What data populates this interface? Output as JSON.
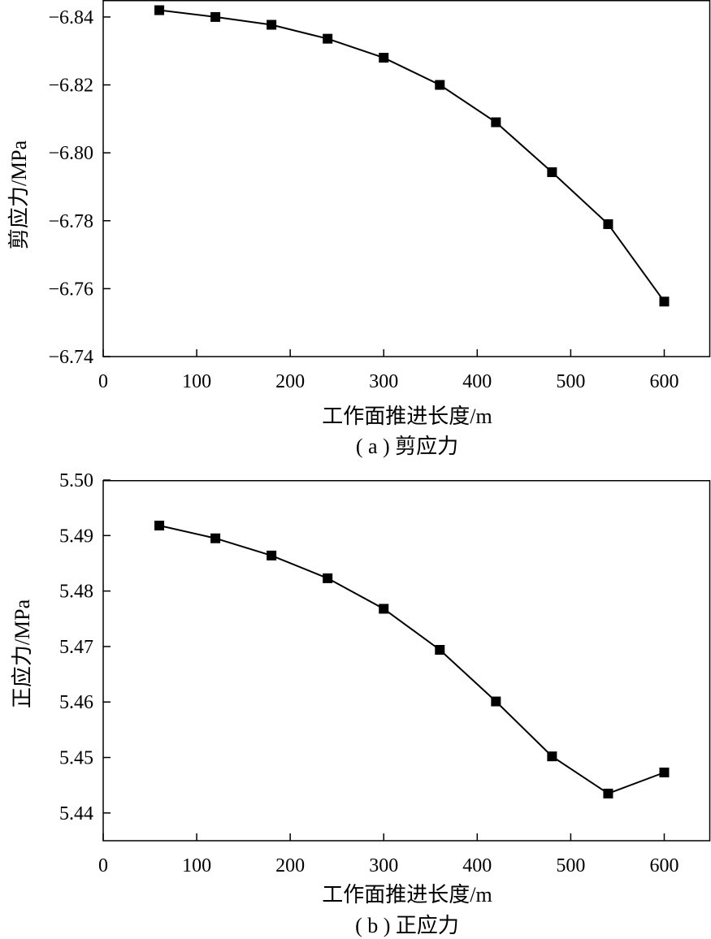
{
  "chart_data": [
    {
      "type": "line",
      "caption": "( a ) 剪应力",
      "xlabel": "工作面推进长度/m",
      "ylabel": "剪应力/MPa",
      "xlim": [
        0,
        650
      ],
      "ylim": [
        -6.74,
        -6.845
      ],
      "y_inverted": true,
      "xticks": [
        0,
        100,
        200,
        300,
        400,
        500,
        600
      ],
      "yticks": [
        -6.84,
        -6.82,
        -6.8,
        -6.78,
        -6.76,
        -6.74
      ],
      "ytick_labels": [
        "−6.84",
        "−6.82",
        "−6.80",
        "−6.78",
        "−6.76",
        "−6.74"
      ],
      "marker": "square",
      "series": [
        {
          "x": [
            60,
            120,
            180,
            240,
            300,
            360,
            420,
            480,
            540,
            600
          ],
          "y": [
            -6.842,
            -6.84,
            -6.8377,
            -6.8336,
            -6.828,
            -6.82,
            -6.809,
            -6.7943,
            -6.779,
            -6.7562
          ]
        }
      ]
    },
    {
      "type": "line",
      "caption": "( b ) 正应力",
      "xlabel": "工作面推进长度/m",
      "ylabel": "正应力/MPa",
      "xlim": [
        0,
        650
      ],
      "ylim": [
        5.435,
        5.5
      ],
      "xticks": [
        0,
        100,
        200,
        300,
        400,
        500,
        600
      ],
      "yticks": [
        5.44,
        5.45,
        5.46,
        5.47,
        5.48,
        5.49,
        5.5
      ],
      "ytick_labels": [
        "5.44",
        "5.45",
        "5.46",
        "5.47",
        "5.48",
        "5.49",
        "5.50"
      ],
      "marker": "square",
      "series": [
        {
          "x": [
            60,
            120,
            180,
            240,
            300,
            360,
            420,
            480,
            540,
            600
          ],
          "y": [
            5.4918,
            5.4895,
            5.4864,
            5.4823,
            5.4768,
            5.4694,
            5.4601,
            5.4502,
            5.4435,
            5.4473
          ]
        }
      ]
    }
  ]
}
